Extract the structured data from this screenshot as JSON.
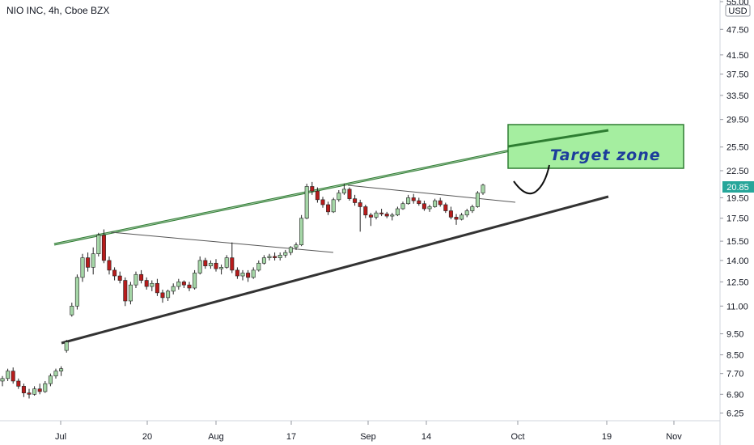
{
  "header": {
    "title": "NIO INC, 4h, Cboe BZX"
  },
  "price_axis": {
    "currency": "USD",
    "last_price_label": "20.85",
    "last_price_color": "#26a69a"
  },
  "annotation": {
    "text": "Target zone",
    "box_fill": "#a5eea0",
    "box_stroke": "#2e7d32"
  },
  "colors": {
    "up": "#26a69a",
    "down": "#b71c1c",
    "up_body": "#a5d6a7",
    "trendline": "#333333",
    "upper_channel": "#2e7d32"
  },
  "chart_data": {
    "type": "candlestick",
    "title": "NIO INC, 4h, Cboe BZX",
    "y_scale": "log",
    "ylim": [
      6.0,
      55.0
    ],
    "y_ticks": [
      "55.00",
      "47.50",
      "41.50",
      "37.50",
      "33.50",
      "29.50",
      "25.50",
      "22.50",
      "19.50",
      "17.50",
      "15.50",
      "14.00",
      "12.50",
      "11.00",
      "9.50",
      "8.50",
      "7.70",
      "6.90",
      "6.25"
    ],
    "x_ticks": [
      "Jul",
      "20",
      "Aug",
      "17",
      "Sep",
      "14",
      "Oct",
      "19",
      "Nov"
    ],
    "grid": false,
    "candles": [
      {
        "o": 7.4,
        "h": 7.6,
        "l": 7.2,
        "c": 7.5
      },
      {
        "o": 7.5,
        "h": 7.9,
        "l": 7.4,
        "c": 7.8
      },
      {
        "o": 7.8,
        "h": 7.95,
        "l": 7.3,
        "c": 7.4
      },
      {
        "o": 7.4,
        "h": 7.5,
        "l": 7.1,
        "c": 7.2
      },
      {
        "o": 7.2,
        "h": 7.3,
        "l": 6.8,
        "c": 6.95
      },
      {
        "o": 6.95,
        "h": 7.1,
        "l": 6.75,
        "c": 6.9
      },
      {
        "o": 6.9,
        "h": 7.2,
        "l": 6.85,
        "c": 7.1
      },
      {
        "o": 7.1,
        "h": 7.3,
        "l": 6.9,
        "c": 7.0
      },
      {
        "o": 7.0,
        "h": 7.4,
        "l": 6.95,
        "c": 7.3
      },
      {
        "o": 7.3,
        "h": 7.7,
        "l": 7.2,
        "c": 7.6
      },
      {
        "o": 7.6,
        "h": 7.9,
        "l": 7.5,
        "c": 7.8
      },
      {
        "o": 7.8,
        "h": 8.0,
        "l": 7.6,
        "c": 7.9
      },
      {
        "o": 8.7,
        "h": 9.2,
        "l": 8.6,
        "c": 9.1
      },
      {
        "o": 10.5,
        "h": 11.2,
        "l": 10.4,
        "c": 11.0
      },
      {
        "o": 11.0,
        "h": 13.0,
        "l": 10.8,
        "c": 12.8
      },
      {
        "o": 12.8,
        "h": 14.5,
        "l": 12.5,
        "c": 14.2
      },
      {
        "o": 14.2,
        "h": 14.6,
        "l": 13.2,
        "c": 13.5
      },
      {
        "o": 13.5,
        "h": 15.0,
        "l": 13.0,
        "c": 14.5
      },
      {
        "o": 14.5,
        "h": 16.2,
        "l": 14.3,
        "c": 16.0
      },
      {
        "o": 16.0,
        "h": 16.5,
        "l": 13.8,
        "c": 14.0
      },
      {
        "o": 14.0,
        "h": 14.3,
        "l": 13.0,
        "c": 13.3
      },
      {
        "o": 13.3,
        "h": 13.5,
        "l": 12.6,
        "c": 12.9
      },
      {
        "o": 12.9,
        "h": 13.2,
        "l": 12.4,
        "c": 12.6
      },
      {
        "o": 12.6,
        "h": 12.8,
        "l": 11.0,
        "c": 11.3
      },
      {
        "o": 11.3,
        "h": 12.5,
        "l": 11.1,
        "c": 12.3
      },
      {
        "o": 12.3,
        "h": 13.2,
        "l": 12.1,
        "c": 13.0
      },
      {
        "o": 13.0,
        "h": 13.3,
        "l": 12.4,
        "c": 12.6
      },
      {
        "o": 12.6,
        "h": 12.8,
        "l": 12.0,
        "c": 12.2
      },
      {
        "o": 12.2,
        "h": 12.6,
        "l": 11.9,
        "c": 12.4
      },
      {
        "o": 12.4,
        "h": 12.7,
        "l": 11.6,
        "c": 11.8
      },
      {
        "o": 11.8,
        "h": 12.0,
        "l": 11.2,
        "c": 11.5
      },
      {
        "o": 11.5,
        "h": 12.0,
        "l": 11.3,
        "c": 11.9
      },
      {
        "o": 11.9,
        "h": 12.4,
        "l": 11.7,
        "c": 12.2
      },
      {
        "o": 12.2,
        "h": 12.7,
        "l": 12.0,
        "c": 12.5
      },
      {
        "o": 12.5,
        "h": 12.6,
        "l": 12.1,
        "c": 12.3
      },
      {
        "o": 12.3,
        "h": 12.5,
        "l": 11.9,
        "c": 12.1
      },
      {
        "o": 12.1,
        "h": 13.3,
        "l": 12.0,
        "c": 13.1
      },
      {
        "o": 13.1,
        "h": 14.3,
        "l": 13.0,
        "c": 14.0
      },
      {
        "o": 14.0,
        "h": 14.2,
        "l": 13.4,
        "c": 13.6
      },
      {
        "o": 13.6,
        "h": 14.0,
        "l": 13.4,
        "c": 13.8
      },
      {
        "o": 13.8,
        "h": 14.1,
        "l": 13.2,
        "c": 13.4
      },
      {
        "o": 13.4,
        "h": 13.7,
        "l": 13.0,
        "c": 13.5
      },
      {
        "o": 13.5,
        "h": 14.4,
        "l": 13.4,
        "c": 14.2
      },
      {
        "o": 14.2,
        "h": 15.4,
        "l": 13.1,
        "c": 13.3
      },
      {
        "o": 13.3,
        "h": 13.5,
        "l": 12.7,
        "c": 12.9
      },
      {
        "o": 12.9,
        "h": 13.3,
        "l": 12.6,
        "c": 13.1
      },
      {
        "o": 13.1,
        "h": 13.3,
        "l": 12.5,
        "c": 12.8
      },
      {
        "o": 12.8,
        "h": 13.5,
        "l": 12.7,
        "c": 13.3
      },
      {
        "o": 13.3,
        "h": 14.0,
        "l": 13.2,
        "c": 13.8
      },
      {
        "o": 13.8,
        "h": 14.4,
        "l": 13.7,
        "c": 14.2
      },
      {
        "o": 14.2,
        "h": 14.5,
        "l": 14.0,
        "c": 14.3
      },
      {
        "o": 14.3,
        "h": 14.6,
        "l": 14.0,
        "c": 14.2
      },
      {
        "o": 14.2,
        "h": 14.6,
        "l": 14.0,
        "c": 14.4
      },
      {
        "o": 14.4,
        "h": 14.8,
        "l": 14.2,
        "c": 14.6
      },
      {
        "o": 14.6,
        "h": 15.1,
        "l": 14.4,
        "c": 15.0
      },
      {
        "o": 15.0,
        "h": 15.4,
        "l": 14.8,
        "c": 15.2
      },
      {
        "o": 15.2,
        "h": 17.8,
        "l": 15.1,
        "c": 17.5
      },
      {
        "o": 17.5,
        "h": 21.0,
        "l": 17.4,
        "c": 20.7
      },
      {
        "o": 20.7,
        "h": 21.2,
        "l": 19.8,
        "c": 20.2
      },
      {
        "o": 20.2,
        "h": 20.6,
        "l": 19.0,
        "c": 19.3
      },
      {
        "o": 19.3,
        "h": 19.6,
        "l": 18.5,
        "c": 18.8
      },
      {
        "o": 18.8,
        "h": 19.1,
        "l": 17.8,
        "c": 18.1
      },
      {
        "o": 18.1,
        "h": 19.5,
        "l": 18.0,
        "c": 19.3
      },
      {
        "o": 19.3,
        "h": 20.3,
        "l": 19.1,
        "c": 20.0
      },
      {
        "o": 20.0,
        "h": 21.0,
        "l": 19.8,
        "c": 20.4
      },
      {
        "o": 20.4,
        "h": 20.6,
        "l": 19.2,
        "c": 19.4
      },
      {
        "o": 19.4,
        "h": 19.8,
        "l": 18.7,
        "c": 19.0
      },
      {
        "o": 19.0,
        "h": 19.3,
        "l": 16.3,
        "c": 18.6
      },
      {
        "o": 18.6,
        "h": 18.8,
        "l": 17.5,
        "c": 17.8
      },
      {
        "o": 17.8,
        "h": 18.0,
        "l": 16.8,
        "c": 17.6
      },
      {
        "o": 17.6,
        "h": 18.2,
        "l": 17.4,
        "c": 18.0
      },
      {
        "o": 18.0,
        "h": 18.4,
        "l": 17.7,
        "c": 17.9
      },
      {
        "o": 17.9,
        "h": 18.1,
        "l": 17.5,
        "c": 17.7
      },
      {
        "o": 17.7,
        "h": 18.0,
        "l": 17.3,
        "c": 17.8
      },
      {
        "o": 17.8,
        "h": 18.6,
        "l": 17.7,
        "c": 18.4
      },
      {
        "o": 18.4,
        "h": 19.1,
        "l": 18.3,
        "c": 18.9
      },
      {
        "o": 18.9,
        "h": 19.8,
        "l": 18.8,
        "c": 19.5
      },
      {
        "o": 19.5,
        "h": 19.9,
        "l": 18.9,
        "c": 19.2
      },
      {
        "o": 19.2,
        "h": 19.5,
        "l": 18.7,
        "c": 18.9
      },
      {
        "o": 18.9,
        "h": 19.2,
        "l": 18.2,
        "c": 18.4
      },
      {
        "o": 18.4,
        "h": 18.8,
        "l": 18.1,
        "c": 18.6
      },
      {
        "o": 18.6,
        "h": 19.4,
        "l": 18.5,
        "c": 19.2
      },
      {
        "o": 19.2,
        "h": 19.5,
        "l": 18.6,
        "c": 18.8
      },
      {
        "o": 18.8,
        "h": 19.0,
        "l": 18.0,
        "c": 18.2
      },
      {
        "o": 18.2,
        "h": 18.6,
        "l": 17.4,
        "c": 17.6
      },
      {
        "o": 17.6,
        "h": 17.9,
        "l": 16.9,
        "c": 17.4
      },
      {
        "o": 17.4,
        "h": 18.0,
        "l": 17.3,
        "c": 17.8
      },
      {
        "o": 17.8,
        "h": 18.4,
        "l": 17.6,
        "c": 18.2
      },
      {
        "o": 18.2,
        "h": 18.8,
        "l": 18.0,
        "c": 18.6
      },
      {
        "o": 18.6,
        "h": 20.2,
        "l": 18.5,
        "c": 20.0
      },
      {
        "o": 20.0,
        "h": 21.0,
        "l": 19.8,
        "c": 20.85
      }
    ]
  }
}
